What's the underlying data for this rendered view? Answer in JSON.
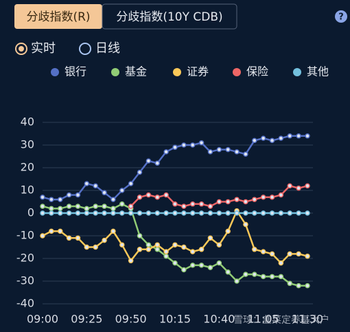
{
  "ui": {
    "tabs": [
      "分歧指数(R)",
      "分歧指数(10Y CDB)"
    ],
    "active_tab": 0,
    "help": "?",
    "modes": [
      "实时",
      "日线"
    ],
    "active_mode": 0,
    "watermark": "雪球：韭菜定养基大户"
  },
  "chart_data": {
    "type": "line",
    "categories": [
      "09:00",
      null,
      null,
      null,
      null,
      "09:25",
      null,
      null,
      null,
      null,
      "09:50",
      null,
      null,
      null,
      null,
      "10:15",
      null,
      null,
      null,
      null,
      "10:40",
      null,
      null,
      null,
      null,
      "11:05",
      null,
      null,
      null,
      null,
      "11:30"
    ],
    "series": [
      {
        "name": "银行",
        "color": "#5470c6",
        "values": [
          7,
          6,
          6,
          8,
          8,
          13,
          12,
          9,
          6,
          10,
          13,
          18,
          23,
          22,
          27,
          29,
          30,
          30,
          31,
          27,
          28,
          28,
          27,
          26,
          32,
          33,
          32,
          33,
          34,
          34,
          34
        ]
      },
      {
        "name": "基金",
        "color": "#91cc75",
        "values": [
          3,
          2,
          2,
          3,
          3,
          2,
          3,
          3,
          2,
          4,
          2,
          -10,
          -14,
          -16,
          -19,
          -22,
          -25,
          -23,
          -23,
          -24,
          -22,
          -26,
          -30,
          -27,
          -27,
          -28,
          -28,
          -28,
          -31,
          -32,
          -32
        ]
      },
      {
        "name": "证券",
        "color": "#fac858",
        "values": [
          -10,
          -8,
          -8,
          -11,
          -11,
          -15,
          -15,
          -12,
          -8,
          -14,
          -21,
          -16,
          -16,
          -14,
          -17,
          -14,
          -15,
          -17,
          -16,
          -11,
          -14,
          -8,
          1,
          -5,
          -16,
          -17,
          -18,
          -22,
          -18,
          -18,
          -19
        ]
      },
      {
        "name": "保险",
        "color": "#ee6666",
        "values": [
          null,
          null,
          null,
          null,
          null,
          null,
          null,
          null,
          null,
          null,
          3,
          7,
          8,
          7,
          8,
          4,
          3,
          4,
          4,
          3,
          5,
          5,
          6,
          5,
          6,
          7,
          7,
          8,
          12,
          11,
          12
        ]
      },
      {
        "name": "其他",
        "color": "#73c0de",
        "values": [
          0,
          0,
          0,
          0,
          0,
          0,
          0,
          0,
          0,
          0,
          0,
          0,
          0,
          0,
          0,
          0,
          0,
          0,
          0,
          0,
          0,
          0,
          0,
          0,
          0,
          0,
          0,
          0,
          0,
          0,
          0
        ]
      }
    ],
    "ylim": [
      -40,
      40
    ],
    "yticks": [
      -40,
      -30,
      -20,
      -10,
      0,
      10,
      20,
      30,
      40
    ],
    "grid": true
  }
}
